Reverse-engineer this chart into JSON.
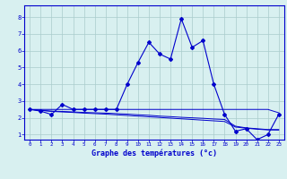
{
  "x": [
    0,
    1,
    2,
    3,
    4,
    5,
    6,
    7,
    8,
    9,
    10,
    11,
    12,
    13,
    14,
    15,
    16,
    17,
    18,
    19,
    20,
    21,
    22,
    23
  ],
  "temp_main": [
    2.5,
    2.4,
    2.2,
    2.8,
    2.5,
    2.5,
    2.5,
    2.5,
    2.5,
    4.0,
    5.3,
    6.5,
    5.8,
    5.5,
    7.9,
    6.2,
    6.6,
    4.0,
    2.2,
    1.2,
    1.35,
    0.7,
    1.0,
    2.2
  ],
  "line2": [
    2.5,
    2.5,
    2.5,
    2.5,
    2.5,
    2.5,
    2.5,
    2.5,
    2.5,
    2.5,
    2.5,
    2.5,
    2.5,
    2.5,
    2.5,
    2.5,
    2.5,
    2.5,
    2.5,
    2.5,
    2.5,
    2.5,
    2.5,
    2.3
  ],
  "line3": [
    2.5,
    2.45,
    2.4,
    2.38,
    2.35,
    2.32,
    2.3,
    2.28,
    2.25,
    2.22,
    2.18,
    2.15,
    2.1,
    2.07,
    2.03,
    2.0,
    1.97,
    1.93,
    1.9,
    1.5,
    1.4,
    1.35,
    1.3,
    1.3
  ],
  "line4": [
    2.5,
    2.45,
    2.38,
    2.35,
    2.32,
    2.28,
    2.25,
    2.22,
    2.18,
    2.14,
    2.1,
    2.06,
    2.02,
    1.98,
    1.94,
    1.9,
    1.86,
    1.82,
    1.78,
    1.45,
    1.38,
    1.32,
    1.28,
    1.27
  ],
  "line_color": "#0000cc",
  "bg_color": "#d8f0f0",
  "grid_color": "#aacccc",
  "xlabel": "Graphe des températures (°c)",
  "xlim": [
    -0.5,
    23.5
  ],
  "ylim": [
    0.7,
    8.7
  ],
  "yticks": [
    1,
    2,
    3,
    4,
    5,
    6,
    7,
    8
  ],
  "xticks": [
    0,
    1,
    2,
    3,
    4,
    5,
    6,
    7,
    8,
    9,
    10,
    11,
    12,
    13,
    14,
    15,
    16,
    17,
    18,
    19,
    20,
    21,
    22,
    23
  ]
}
